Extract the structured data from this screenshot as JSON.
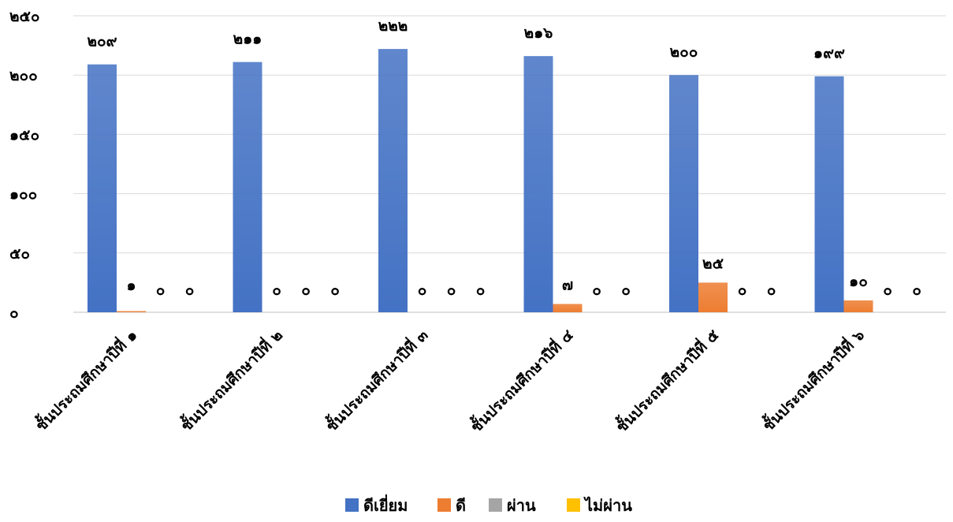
{
  "chart_data": {
    "type": "bar",
    "categories": [
      "ชั้นประถมศึกษาปีที่ ๑",
      "ชั้นประถมศึกษาปีที่ ๒",
      "ชั้นประถมศึกษาปีที่ ๓",
      "ชั้นประถมศึกษาปีที่ ๔",
      "ชั้นประถมศึกษาปีที่ ๕",
      "ชั้นประถมศึกษาปีที่ ๖"
    ],
    "series": [
      {
        "name": "ดีเยี่ยม",
        "color": "#4472C4",
        "values": [
          209,
          211,
          222,
          216,
          200,
          199
        ],
        "labels": [
          "๒๐๙",
          "๒๑๑",
          "๒๒๒",
          "๒๑๖",
          "๒๐๐",
          "๑๙๙"
        ]
      },
      {
        "name": "ดี",
        "color": "#ED7D31",
        "values": [
          1,
          0,
          0,
          7,
          25,
          10
        ],
        "labels": [
          "๑",
          "๐",
          "๐",
          "๗",
          "๒๕",
          "๑๐"
        ]
      },
      {
        "name": "ผ่าน",
        "color": "#A5A5A5",
        "values": [
          0,
          0,
          0,
          0,
          0,
          0
        ],
        "labels": [
          "๐",
          "๐",
          "๐",
          "๐",
          "๐",
          "๐"
        ]
      },
      {
        "name": "ไม่ผ่าน",
        "color": "#FFC000",
        "values": [
          0,
          0,
          0,
          0,
          0,
          0
        ],
        "labels": [
          "๐",
          "๐",
          "๐",
          "๐",
          "๐",
          "๐"
        ]
      }
    ],
    "ylim": [
      0,
      250
    ],
    "yticks": [
      0,
      50,
      100,
      150,
      200,
      250
    ],
    "ytick_labels": [
      "๐",
      "๕๐",
      "๑๐๐",
      "๑๕๐",
      "๒๐๐",
      "๒๕๐"
    ],
    "grid": true,
    "legend_position": "bottom"
  }
}
